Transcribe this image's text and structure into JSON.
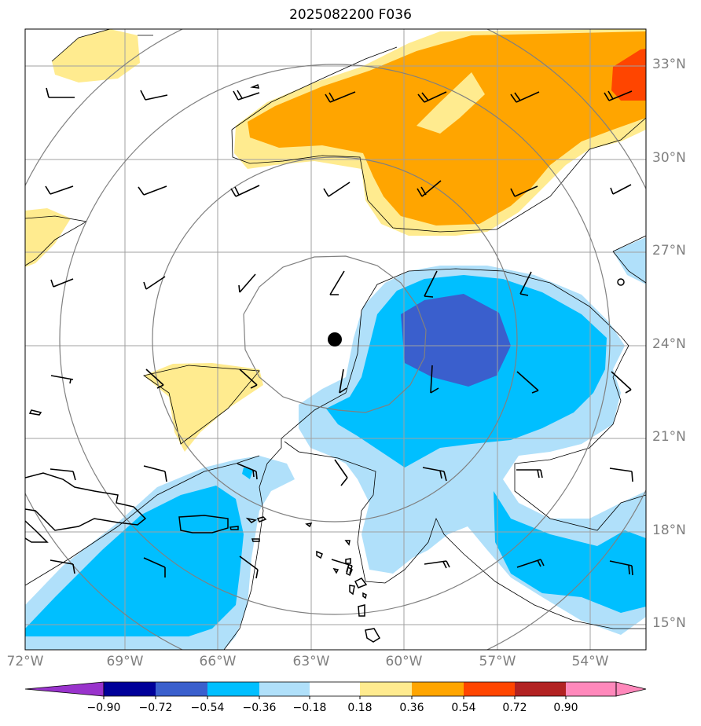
{
  "title": "2025082200 F036",
  "map": {
    "lat_labels": [
      "33°N",
      "30°N",
      "27°N",
      "24°N",
      "21°N",
      "18°N",
      "15°N"
    ],
    "lon_labels": [
      "72°W",
      "69°W",
      "66°W",
      "63°W",
      "60°W",
      "57°W",
      "54°W"
    ]
  },
  "colorbar": {
    "labels": [
      "−0.90",
      "−0.72",
      "−0.54",
      "−0.36",
      "−0.18",
      "0.18",
      "0.36",
      "0.54",
      "0.72",
      "0.90"
    ],
    "colors": [
      "#9933cc",
      "#000099",
      "#3a5fcd",
      "#00bfff",
      "#b0e0fa",
      "#ffffff",
      "#ffeb8f",
      "#ffa500",
      "#ff4500",
      "#b22222",
      "#ff88bb"
    ]
  },
  "legend_colors": {
    "coast": "#000000",
    "contour": "#808080",
    "grid": "#a0a0a0",
    "center_marker": "#000000"
  }
}
